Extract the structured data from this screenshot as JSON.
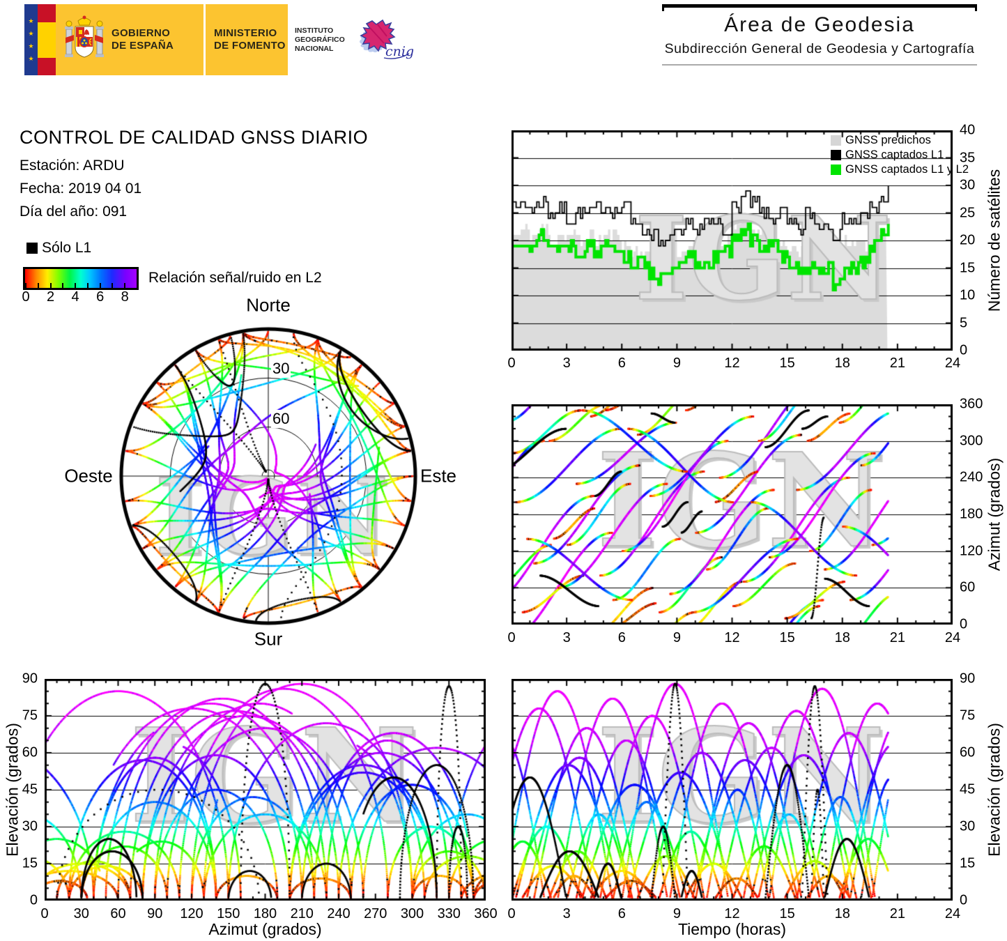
{
  "header": {
    "gov": {
      "line1": "GOBIERNO",
      "line2": "DE ESPAÑA"
    },
    "ministry": {
      "line1": "MINISTERIO",
      "line2": "DE FOMENTO"
    },
    "institute": {
      "line1": "INSTITUTO",
      "line2": "GEOGRÁFICO",
      "line3": "NACIONAL"
    },
    "cnig_label": "cnig",
    "right": {
      "title": "Área de Geodesia",
      "subtitle": "Subdirección General de Geodesia y Cartografía"
    }
  },
  "report": {
    "title": "CONTROL DE CALIDAD GNSS DIARIO",
    "station_label": "Estación: ARDU",
    "date_label": "Fecha: 2019 04 01",
    "doy_label": "Día del año: 091"
  },
  "legend": {
    "l1_only_label": "Sólo L1",
    "colorbar_label": "Relación señal/ruido en L2",
    "colorbar_range": [
      0,
      9
    ],
    "colorbar_ticks": [
      0,
      1,
      2,
      3,
      4,
      5,
      6,
      7,
      8,
      9
    ],
    "colorbar_tick_labels": [
      0,
      2,
      4,
      6,
      8
    ]
  },
  "watermark": "IGN",
  "colors": {
    "predicted_area": "#dcdcdc",
    "captured_l1": "#000000",
    "captured_l1l2": "#00e400",
    "legend_gray_swatch": "#d6d6d6",
    "header_yellow": "#fcc430",
    "watermark_gray": "#d9d9d9"
  },
  "snr_color_model": {
    "el_stops": [
      0,
      7,
      13,
      22,
      32,
      45,
      62,
      90
    ],
    "hue_stops": [
      0,
      25,
      60,
      120,
      185,
      235,
      285,
      300
    ]
  },
  "satellites": {
    "fields": [
      "t_start_h",
      "t_end_h",
      "el_max_deg",
      "az_start_deg",
      "az_end_deg",
      "l1_only"
    ],
    "t_visible": [
      0,
      20.5
    ],
    "passes": [
      [
        -1.5,
        4.5,
        78,
        30,
        210,
        0
      ],
      [
        -0.5,
        5.5,
        85,
        330,
        510,
        0
      ],
      [
        0.2,
        6,
        55,
        200,
        320,
        0
      ],
      [
        0,
        3.8,
        30,
        280,
        350,
        0
      ],
      [
        0.5,
        4,
        14,
        20,
        80,
        0
      ],
      [
        1.2,
        7,
        70,
        100,
        260,
        0
      ],
      [
        2,
        5.2,
        20,
        300,
        360,
        0
      ],
      [
        2.5,
        8.5,
        82,
        60,
        230,
        0
      ],
      [
        3,
        6.5,
        35,
        130,
        230,
        0
      ],
      [
        3.5,
        9,
        65,
        230,
        330,
        0
      ],
      [
        4.2,
        7.8,
        12,
        340,
        420,
        0
      ],
      [
        4.8,
        10.5,
        75,
        80,
        250,
        0
      ],
      [
        5.5,
        9.2,
        40,
        40,
        140,
        0
      ],
      [
        6,
        11.8,
        88,
        120,
        300,
        0
      ],
      [
        6.8,
        10,
        18,
        310,
        380,
        0
      ],
      [
        7.5,
        13.2,
        60,
        210,
        340,
        0
      ],
      [
        8,
        11.5,
        28,
        20,
        110,
        0
      ],
      [
        8.6,
        14.3,
        80,
        50,
        220,
        0
      ],
      [
        9.4,
        12.6,
        15,
        350,
        430,
        0
      ],
      [
        10,
        15.8,
        72,
        150,
        310,
        0
      ],
      [
        10.6,
        14,
        45,
        90,
        190,
        0
      ],
      [
        11.3,
        17,
        62,
        240,
        400,
        0
      ],
      [
        12,
        15.5,
        22,
        30,
        100,
        0
      ],
      [
        12.6,
        18.4,
        77,
        70,
        240,
        0
      ],
      [
        13.4,
        16.8,
        35,
        300,
        390,
        0
      ],
      [
        14,
        19.8,
        86,
        110,
        280,
        0
      ],
      [
        14.8,
        18.2,
        16,
        10,
        70,
        0
      ],
      [
        15.5,
        21.2,
        68,
        220,
        350,
        0
      ],
      [
        16.2,
        19.6,
        42,
        120,
        220,
        0
      ],
      [
        17,
        22.8,
        80,
        90,
        260,
        0
      ],
      [
        17.8,
        21,
        25,
        330,
        410,
        0
      ],
      [
        18.4,
        24,
        74,
        40,
        200,
        0
      ],
      [
        19,
        22.4,
        50,
        260,
        350,
        0
      ],
      [
        19.6,
        25,
        83,
        130,
        300,
        0
      ],
      [
        -2.5,
        1.8,
        65,
        180,
        300,
        0
      ],
      [
        -1,
        2.2,
        24,
        60,
        130,
        0
      ],
      [
        5,
        8,
        8,
        350,
        395,
        0
      ],
      [
        11,
        13.5,
        9,
        200,
        250,
        0
      ],
      [
        16,
        18.5,
        10,
        300,
        345,
        0
      ],
      [
        2.2,
        4.6,
        10,
        140,
        190,
        0
      ],
      [
        0.8,
        6.6,
        58,
        140,
        40,
        0
      ],
      [
        6.3,
        12.1,
        52,
        320,
        200,
        0
      ],
      [
        9.8,
        15.6,
        57,
        20,
        140,
        0
      ],
      [
        13,
        18.8,
        59,
        200,
        80,
        0
      ],
      [
        3.8,
        9.6,
        47,
        350,
        250,
        0
      ],
      [
        18,
        23.8,
        64,
        160,
        40,
        0
      ],
      [
        8.2,
        9.6,
        88,
        160,
        200,
        1
      ],
      [
        15.8,
        17.2,
        87,
        320,
        340,
        1
      ],
      [
        1.5,
        4.8,
        20,
        80,
        30,
        1
      ],
      [
        13.8,
        16.2,
        55,
        290,
        350,
        1
      ],
      [
        7.6,
        8.9,
        30,
        345,
        330,
        1
      ],
      [
        -1,
        3,
        50,
        250,
        320,
        1
      ],
      [
        16.3,
        17,
        45,
        10,
        175,
        1
      ],
      [
        17,
        19.5,
        25,
        75,
        30,
        1
      ],
      [
        9.2,
        10.4,
        12,
        150,
        185,
        1
      ],
      [
        4.5,
        6,
        15,
        210,
        250,
        1
      ]
    ]
  },
  "chart_data": [
    {
      "id": "satellite-count",
      "type": "area",
      "xlabel": "",
      "ylabel": "Número de satélites",
      "xlim": [
        0,
        24
      ],
      "ylim": [
        0,
        40
      ],
      "xticks": [
        0,
        3,
        6,
        9,
        12,
        15,
        18,
        21,
        24
      ],
      "yticks": [
        0,
        5,
        10,
        15,
        20,
        25,
        30,
        35,
        40
      ],
      "grid_y": [
        5,
        10,
        15,
        20,
        25,
        30,
        35
      ],
      "legend": [
        {
          "label": "GNSS predichos",
          "color": "#d6d6d6"
        },
        {
          "label": "GNSS captados L1",
          "color": "#000000"
        },
        {
          "label": "GNSS captados L1 y L2",
          "color": "#00e400"
        }
      ],
      "t_step": 0.5,
      "t_end": 20.5,
      "series": [
        {
          "name": "GNSS predichos",
          "role": "area",
          "color": "#dcdcdc",
          "values": [
            21,
            22,
            21,
            22,
            20,
            21,
            21,
            20,
            21,
            20,
            21,
            21,
            19,
            18,
            18,
            17,
            20,
            21,
            18,
            19,
            19,
            18,
            19,
            20,
            23,
            24,
            22,
            21,
            20,
            19,
            19,
            18,
            21,
            20,
            19,
            18,
            20,
            19,
            19,
            20,
            22,
            24
          ]
        },
        {
          "name": "GNSS captados L1",
          "role": "step-line",
          "color": "#000000",
          "values": [
            27,
            26,
            26,
            27,
            25,
            26,
            24,
            25,
            25,
            26,
            26,
            25,
            26,
            24,
            22,
            21,
            19,
            21,
            21,
            23,
            22,
            23,
            23,
            22,
            26,
            28,
            27,
            25,
            24,
            25,
            23,
            22,
            25,
            23,
            23,
            21,
            24,
            23,
            24,
            26,
            27,
            30
          ]
        },
        {
          "name": "GNSS captados L1 y L2",
          "role": "step-line",
          "color": "#00e400",
          "values": [
            19,
            20,
            19,
            21,
            19,
            19,
            19,
            18,
            19,
            18,
            20,
            19,
            17,
            16,
            16,
            14,
            13,
            14,
            15,
            17,
            16,
            16,
            17,
            18,
            21,
            22,
            20,
            19,
            19,
            17,
            16,
            15,
            15,
            14,
            15,
            12,
            14,
            15,
            16,
            19,
            21,
            23
          ]
        }
      ]
    },
    {
      "id": "azimuth-vs-time",
      "type": "scatter-tracks",
      "xlabel": "",
      "ylabel": "Azimut (grados)",
      "xlim": [
        0,
        24
      ],
      "ylim": [
        0,
        360
      ],
      "xticks": [
        0,
        3,
        6,
        9,
        12,
        15,
        18,
        21,
        24
      ],
      "yticks": [
        0,
        60,
        120,
        180,
        240,
        300,
        360
      ],
      "grid_y": [
        60,
        120,
        180,
        240,
        300
      ],
      "x_var": "time",
      "y_var": "azimuth",
      "tracks_ref": "satellites"
    },
    {
      "id": "elevation-vs-azimuth",
      "type": "scatter-tracks",
      "xlabel": "Azimut (grados)",
      "ylabel": "Elevación (grados)",
      "xlim": [
        0,
        360
      ],
      "ylim": [
        0,
        90
      ],
      "xticks": [
        0,
        30,
        60,
        90,
        120,
        150,
        180,
        210,
        240,
        270,
        300,
        330,
        360
      ],
      "yticks": [
        0,
        15,
        30,
        45,
        60,
        75,
        90
      ],
      "grid_y": [
        15,
        30,
        45,
        60,
        75
      ],
      "x_var": "azimuth",
      "y_var": "elevation",
      "tracks_ref": "satellites"
    },
    {
      "id": "elevation-vs-time",
      "type": "scatter-tracks",
      "xlabel": "Tiempo (horas)",
      "ylabel": "Elevación (grados)",
      "xlim": [
        0,
        24
      ],
      "ylim": [
        0,
        90
      ],
      "xticks": [
        0,
        3,
        6,
        9,
        12,
        15,
        18,
        21,
        24
      ],
      "yticks": [
        0,
        15,
        30,
        45,
        60,
        75,
        90
      ],
      "grid_y": [
        15,
        30,
        45,
        60,
        75
      ],
      "x_var": "time",
      "y_var": "elevation",
      "tracks_ref": "satellites"
    },
    {
      "id": "skyplot",
      "type": "polar-tracks",
      "rings_deg": [
        30,
        60
      ],
      "ring_labels": [
        "30",
        "60"
      ],
      "cardinal": {
        "north": "Norte",
        "south": "Sur",
        "east": "Este",
        "west": "Oeste"
      },
      "tracks_ref": "satellites"
    }
  ]
}
